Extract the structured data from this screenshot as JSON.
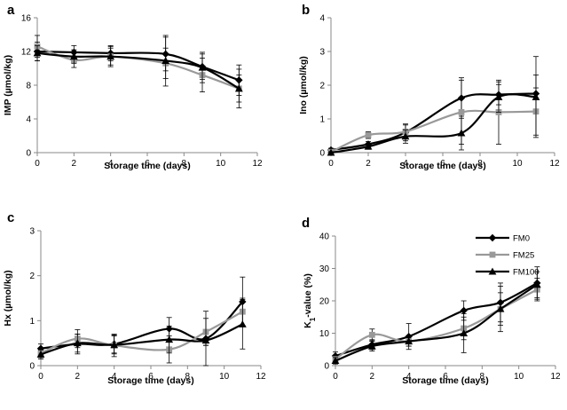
{
  "chart_data": [
    {
      "type": "line",
      "panel": "a",
      "xlabel": "Storage time (days)",
      "ylabel": "IMP (µmol/kg)",
      "xlim": [
        0,
        12
      ],
      "xticks": [
        0,
        2,
        4,
        6,
        8,
        10,
        12
      ],
      "ylim": [
        0,
        16
      ],
      "yticks": [
        0,
        4,
        8,
        12,
        16
      ],
      "x": [
        0,
        2,
        4,
        7,
        9,
        11
      ],
      "series": [
        {
          "name": "FM0",
          "values": [
            12.0,
            11.9,
            11.8,
            11.7,
            10.2,
            8.6
          ],
          "err": [
            1.1,
            0.8,
            0.9,
            2.0,
            1.5,
            1.8
          ]
        },
        {
          "name": "FM25",
          "values": [
            12.6,
            11.0,
            11.4,
            10.6,
            9.2,
            7.6
          ],
          "err": [
            1.3,
            0.9,
            1.2,
            1.8,
            2.0,
            2.3
          ]
        },
        {
          "name": "FM100",
          "values": [
            11.8,
            11.4,
            11.4,
            10.9,
            10.1,
            7.6
          ],
          "err": [
            0.9,
            0.8,
            1.0,
            3.0,
            1.8,
            1.6
          ]
        }
      ]
    },
    {
      "type": "line",
      "panel": "b",
      "xlabel": "Storage time (days)",
      "ylabel": "Ino (µmol/kg)",
      "xlim": [
        0,
        12
      ],
      "xticks": [
        0,
        2,
        4,
        6,
        8,
        10,
        12
      ],
      "ylim": [
        0,
        4
      ],
      "yticks": [
        0,
        1,
        2,
        3,
        4
      ],
      "x": [
        0,
        2,
        4,
        7,
        9,
        11
      ],
      "series": [
        {
          "name": "FM0",
          "values": [
            0.08,
            0.25,
            0.6,
            1.62,
            1.72,
            1.75
          ],
          "err": [
            0.05,
            0.08,
            0.25,
            0.6,
            0.3,
            0.55
          ]
        },
        {
          "name": "FM25",
          "values": [
            0.02,
            0.52,
            0.62,
            1.2,
            1.2,
            1.22
          ],
          "err": [
            0.03,
            0.1,
            0.2,
            0.95,
            0.95,
            0.7
          ]
        },
        {
          "name": "FM100",
          "values": [
            0.0,
            0.18,
            0.48,
            0.58,
            1.65,
            1.65
          ],
          "err": [
            0.03,
            0.08,
            0.2,
            0.5,
            0.45,
            1.2
          ]
        }
      ]
    },
    {
      "type": "line",
      "panel": "c",
      "xlabel": "Storage time (days)",
      "ylabel": "Hx (µmol/kg)",
      "xlim": [
        0,
        12
      ],
      "xticks": [
        0,
        2,
        4,
        6,
        8,
        10,
        12
      ],
      "ylim": [
        0,
        3
      ],
      "yticks": [
        0,
        1,
        2,
        3
      ],
      "x": [
        0,
        2,
        4,
        7,
        9,
        11
      ],
      "series": [
        {
          "name": "FM0",
          "values": [
            0.38,
            0.48,
            0.48,
            0.82,
            0.6,
            1.42
          ],
          "err": [
            0.1,
            0.22,
            0.2,
            0.25,
            0.15,
            0.55
          ]
        },
        {
          "name": "FM25",
          "values": [
            0.28,
            0.6,
            0.45,
            0.36,
            0.75,
            1.2
          ],
          "err": [
            0.1,
            0.2,
            0.25,
            0.3,
            0.3,
            0.3
          ]
        },
        {
          "name": "FM100",
          "values": [
            0.25,
            0.5,
            0.46,
            0.58,
            0.56,
            0.92
          ],
          "err": [
            0.1,
            0.2,
            0.2,
            0.3,
            0.65,
            0.55
          ]
        }
      ]
    },
    {
      "type": "line",
      "panel": "d",
      "xlabel": "Storage time (days)",
      "ylabel": "K",
      "ylabel_sub": "1",
      "ylabel_rest": "-value (%)",
      "xlim": [
        0,
        12
      ],
      "xticks": [
        0,
        2,
        4,
        6,
        8,
        10,
        12
      ],
      "ylim": [
        0,
        40
      ],
      "yticks": [
        0,
        10,
        20,
        30,
        40
      ],
      "x": [
        0,
        2,
        4,
        7,
        9,
        11
      ],
      "series": [
        {
          "name": "FM0",
          "values": [
            3.0,
            6.5,
            9.0,
            17.0,
            19.5,
            25.5
          ],
          "err": [
            1.2,
            1.5,
            4.0,
            3.0,
            6.0,
            5.0
          ]
        },
        {
          "name": "FM25",
          "values": [
            2.0,
            9.5,
            7.5,
            11.5,
            17.5,
            23.5
          ],
          "err": [
            1.0,
            1.8,
            1.5,
            3.5,
            5.0,
            3.5
          ]
        },
        {
          "name": "FM100",
          "values": [
            1.5,
            6.0,
            7.5,
            10.0,
            17.5,
            25.0
          ],
          "err": [
            1.0,
            1.5,
            1.5,
            6.0,
            7.0,
            4.0
          ]
        }
      ],
      "legend": [
        "FM0",
        "FM25",
        "FM100"
      ],
      "legend_position": "top-right"
    }
  ],
  "styles": {
    "FM0": {
      "color": "#000000",
      "marker": "diamond"
    },
    "FM25": {
      "color": "#999999",
      "marker": "square"
    },
    "FM100": {
      "color": "#000000",
      "marker": "triangle"
    }
  }
}
